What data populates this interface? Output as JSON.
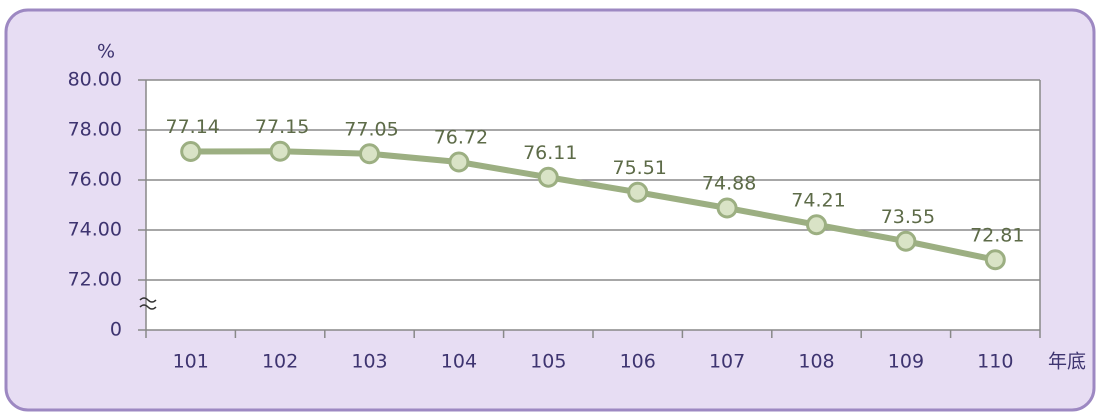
{
  "chart_data": {
    "type": "line",
    "y_axis_label": "%",
    "x_axis_label": "年底",
    "categories": [
      "101",
      "102",
      "103",
      "104",
      "105",
      "106",
      "107",
      "108",
      "109",
      "110"
    ],
    "values": [
      77.14,
      77.15,
      77.05,
      76.72,
      76.11,
      75.51,
      74.88,
      74.21,
      73.55,
      72.81
    ],
    "value_labels": [
      "77.14",
      "77.15",
      "77.05",
      "76.72",
      "76.11",
      "75.51",
      "74.88",
      "74.21",
      "73.55",
      "72.81"
    ],
    "color": "#9caf82",
    "ylim": [
      0,
      80
    ],
    "yticks": [
      {
        "value": 0,
        "label": "0"
      },
      {
        "value": 72,
        "label": "72.00"
      },
      {
        "value": 74,
        "label": "74.00"
      },
      {
        "value": 76,
        "label": "76.00"
      },
      {
        "value": 78,
        "label": "78.00"
      },
      {
        "value": 80,
        "label": "80.00"
      }
    ],
    "axis_break": true,
    "grid": true
  }
}
